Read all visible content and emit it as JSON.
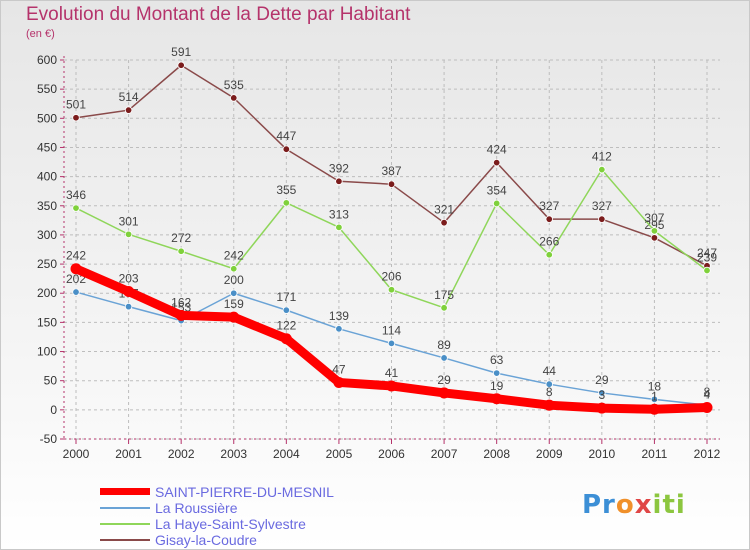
{
  "header": {
    "title": "Evolution du Montant de la Dette par Habitant",
    "subtitle": "(en €)"
  },
  "logo": {
    "text": "Proxiti",
    "colors": [
      "#3c8fd6",
      "#f0902a",
      "#e04646",
      "#8cc63f"
    ]
  },
  "chart_data": {
    "type": "line",
    "title": "Evolution du Montant de la Dette par Habitant",
    "subtitle": "(en €)",
    "x": [
      "2000",
      "2001",
      "2002",
      "2003",
      "2004",
      "2005",
      "2006",
      "2007",
      "2008",
      "2009",
      "2010",
      "2011",
      "2012"
    ],
    "ylim": [
      -50,
      600
    ],
    "yticks": [
      -50,
      0,
      50,
      100,
      150,
      200,
      250,
      300,
      350,
      400,
      450,
      500,
      550,
      600
    ],
    "grid": true,
    "legend_position": "bottom-left",
    "series": [
      {
        "name": "Gisay-la-Coudre",
        "color": "#7b1c1c",
        "line_color": "#8a4a4a",
        "values": [
          501,
          514,
          591,
          535,
          447,
          392,
          387,
          321,
          424,
          327,
          327,
          295,
          247
        ]
      },
      {
        "name": "La Haye-Saint-Sylvestre",
        "color": "#7fd13b",
        "line_color": "#8fd65a",
        "values": [
          346,
          301,
          272,
          242,
          355,
          313,
          206,
          175,
          354,
          266,
          412,
          307,
          239
        ]
      },
      {
        "name": "La Roussière",
        "color": "#4a8fc7",
        "line_color": "#6aa3d6",
        "values": [
          202,
          177,
          153,
          200,
          171,
          139,
          114,
          89,
          63,
          44,
          29,
          18,
          8
        ]
      },
      {
        "name": "SAINT-PIERRE-DU-MESNIL",
        "color": "#ff0000",
        "line_color": "#ff0000",
        "values": [
          242,
          203,
          162,
          159,
          122,
          47,
          41,
          29,
          19,
          8,
          3,
          1,
          4
        ]
      }
    ],
    "data_labels": {
      "Gisay-la-Coudre": [
        "501",
        "514",
        "591",
        "535",
        "447",
        "392",
        "387",
        "321",
        "424",
        "327",
        "327",
        "295",
        "247"
      ],
      "La Haye-Saint-Sylvestre": [
        "346",
        "301",
        "272",
        "242",
        "355",
        "313",
        "206",
        "175",
        "354",
        "266",
        "412",
        "307",
        "239"
      ],
      "La Roussière": [
        "202",
        "177",
        "153",
        "200",
        "171",
        "139",
        "114",
        "89",
        "63",
        "44",
        "29",
        "18",
        "8"
      ],
      "SAINT-PIERRE-DU-MESNIL": [
        "242",
        "203",
        "162",
        "159",
        "122",
        "47",
        "41",
        "29",
        "19",
        "8",
        "3",
        "1",
        "4"
      ]
    }
  },
  "legend": {
    "items": [
      {
        "label": "SAINT-PIERRE-DU-MESNIL",
        "color": "#ff0000",
        "thick": true
      },
      {
        "label": "La Roussière",
        "color": "#6aa3d6",
        "thick": false
      },
      {
        "label": "La Haye-Saint-Sylvestre",
        "color": "#8fd65a",
        "thick": false
      },
      {
        "label": "Gisay-la-Coudre",
        "color": "#8a4a4a",
        "thick": false
      }
    ]
  }
}
